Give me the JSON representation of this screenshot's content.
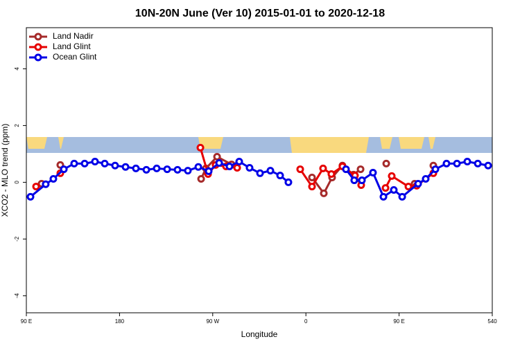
{
  "chart_data": {
    "type": "line",
    "title": "10N-20N June (Ver 10)   2015-01-01 to 2020-12-18",
    "xlabel": "Longitude",
    "ylabel": "XCO2 - MLO trend (ppm)",
    "xlim": [
      90,
      540
    ],
    "ylim": [
      -4.6,
      5.45
    ],
    "xticks": [
      {
        "value": 90,
        "label": "90 E"
      },
      180,
      {
        "value": 270,
        "label": "90 W"
      },
      {
        "value": 360,
        "label": "0"
      },
      {
        "value": 450,
        "label": "90 E"
      },
      540
    ],
    "yticks": [
      -4,
      -2,
      0,
      2,
      4
    ],
    "legend": "top-left",
    "series": [
      {
        "name": "Land Nadir",
        "color": "#a52a2a",
        "x": [
          104.7,
          null,
          122.8,
          null,
          258.8,
          263.4,
          274.2,
          288.2,
          null,
          365.9,
          377.3,
          385.3,
          395.3,
          406,
          412.8,
          null,
          437.6,
          null,
          465,
          null,
          483.1
        ],
        "values": [
          -0.05,
          null,
          0.61,
          null,
          0.12,
          0.49,
          0.9,
          0.63,
          null,
          0.17,
          -0.39,
          0.17,
          0.59,
          0.27,
          0.46,
          null,
          0.66,
          null,
          -0.05,
          null,
          0.59
        ]
      },
      {
        "name": "Land Glint",
        "color": "#e60000",
        "x": [
          99.4,
          null,
          122.8,
          null,
          258.1,
          265.5,
          272.8,
          282.9,
          293.6,
          null,
          354.5,
          365.9,
          376.6,
          384.6,
          395.3,
          407.4,
          413.4,
          null,
          436.9,
          442.9,
          459,
          467,
          483.1
        ],
        "values": [
          -0.15,
          null,
          0.32,
          null,
          1.22,
          0.29,
          0.61,
          0.56,
          0.51,
          null,
          0.46,
          -0.15,
          0.49,
          0.29,
          0.56,
          0.24,
          -0.1,
          null,
          -0.2,
          0.22,
          -0.15,
          -0.12,
          0.32
        ]
      },
      {
        "name": "Ocean Glint",
        "color": "#0000e6",
        "x": [
          94,
          108.7,
          116.1,
          126.2,
          136.2,
          146.3,
          156.3,
          165.7,
          175.7,
          185.8,
          195.8,
          205.9,
          215.9,
          226,
          236,
          246,
          256.1,
          266.1,
          276.2,
          286.2,
          295.6,
          305.6,
          315.7,
          325.7,
          335.1,
          343.1,
          null,
          398.7,
          406.7,
          414.1,
          424.8,
          434.9,
          444.9,
          453,
          468.4,
          475.7,
          485.1,
          495.8,
          505.9,
          515.9,
          526,
          536
        ],
        "values": [
          -0.51,
          -0.07,
          0.12,
          0.46,
          0.66,
          0.66,
          0.73,
          0.66,
          0.59,
          0.54,
          0.49,
          0.44,
          0.49,
          0.46,
          0.44,
          0.41,
          0.54,
          0.39,
          0.68,
          0.56,
          0.73,
          0.51,
          0.32,
          0.41,
          0.24,
          0,
          null,
          0.46,
          0.07,
          0.07,
          0.34,
          -0.51,
          -0.27,
          -0.51,
          -0.05,
          0.12,
          0.46,
          0.66,
          0.66,
          0.73,
          0.66,
          0.59
        ]
      }
    ]
  }
}
